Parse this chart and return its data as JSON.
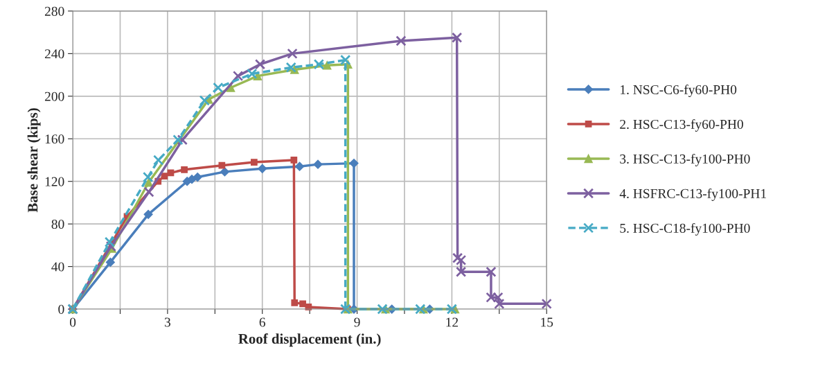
{
  "chart_data": {
    "type": "line",
    "xlabel": "Roof displacement (in.)",
    "ylabel": "Base shear (kips)",
    "xlim": [
      0,
      15
    ],
    "ylim": [
      0,
      280
    ],
    "xticks": [
      0,
      {
        "value": 1.5,
        "label": null
      },
      3,
      {
        "value": 4.5,
        "label": null
      },
      6,
      {
        "value": 7.5,
        "label": null
      },
      9,
      {
        "value": 10.5,
        "label": null
      },
      12,
      {
        "value": 13.5,
        "label": null
      },
      15
    ],
    "yticks": [
      0,
      40,
      80,
      120,
      160,
      200,
      240,
      280
    ],
    "grid": true,
    "legend": "right",
    "series": [
      {
        "name": "1. NSC-C6-fy60-PH0",
        "color": "#4a7ebb",
        "marker": "diamond",
        "line_style": "solid",
        "x": [
          0,
          1.19,
          2.39,
          3.62,
          3.77,
          3.95,
          4.81,
          6.0,
          7.18,
          7.76,
          8.9,
          8.9,
          10.1,
          11.3
        ],
        "values": [
          0,
          44,
          89,
          120,
          122,
          124,
          129,
          132,
          134,
          136,
          137,
          0,
          0,
          0
        ]
      },
      {
        "name": "2. HSC-C13-fy60-PH0",
        "color": "#be4b48",
        "marker": "square",
        "line_style": "solid",
        "x": [
          0,
          1.72,
          2.7,
          2.9,
          3.1,
          3.53,
          4.72,
          5.74,
          7.0,
          7.02,
          7.28,
          7.46,
          8.7
        ],
        "values": [
          0,
          87,
          120,
          125,
          128,
          131,
          135,
          138,
          140,
          6,
          5,
          2,
          0
        ]
      },
      {
        "name": "3. HSC-C13-fy100-PH0",
        "color": "#98b954",
        "marker": "triangle",
        "line_style": "solid",
        "x": [
          0,
          1.24,
          2.4,
          4.3,
          5.0,
          5.85,
          7.02,
          8.05,
          8.71,
          8.71,
          9.9,
          11.1,
          12.1
        ],
        "values": [
          0,
          57,
          119,
          197,
          208,
          219,
          225,
          229,
          230,
          0,
          0,
          0,
          0
        ]
      },
      {
        "name": "4. HSFRC-C13-fy100-PH1",
        "color": "#7d60a0",
        "marker": "cross",
        "line_style": "solid",
        "x": [
          0,
          1.21,
          2.41,
          3.47,
          5.23,
          5.93,
          6.95,
          10.39,
          12.16,
          12.18,
          12.29,
          12.29,
          13.24,
          13.24,
          13.46,
          13.5,
          15
        ],
        "values": [
          0,
          59,
          110,
          159,
          219,
          230,
          240,
          252,
          255,
          48,
          46,
          35,
          35,
          11,
          11,
          5,
          5
        ]
      },
      {
        "name": "5. HSC-C18-fy100-PH0",
        "color": "#46aac5",
        "marker": "cross",
        "line_style": "dashed",
        "x": [
          0,
          1.17,
          2.38,
          2.71,
          3.33,
          4.17,
          4.6,
          5.67,
          6.91,
          7.79,
          8.63,
          8.63,
          9.8,
          11.0,
          12.0
        ],
        "values": [
          0,
          63,
          124,
          140,
          159,
          196,
          208,
          221,
          227,
          230,
          234,
          0,
          0,
          0,
          0
        ]
      }
    ]
  }
}
